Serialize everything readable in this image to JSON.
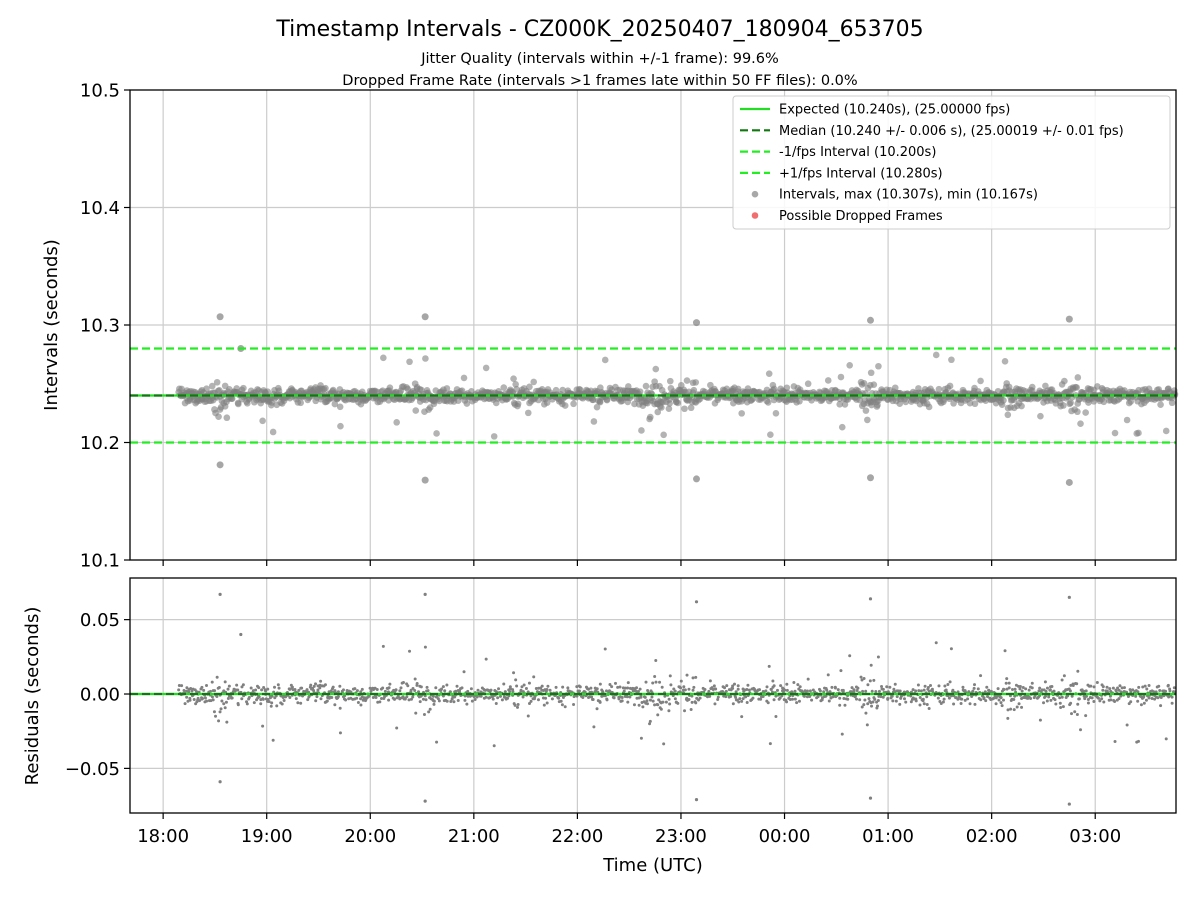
{
  "chart_data": {
    "type": "scatter",
    "title": "Timestamp Intervals - CZ000K_20250407_180904_653705",
    "subtitle_1": "Jitter Quality (intervals within +/-1 frame): 99.6%",
    "subtitle_2": "Dropped Frame Rate (intervals >1 frames late within 50 FF files): 0.0%",
    "xlabel": "Time (UTC)",
    "x_tick_labels": [
      "18:00",
      "19:00",
      "20:00",
      "21:00",
      "22:00",
      "23:00",
      "00:00",
      "01:00",
      "02:00",
      "03:00"
    ],
    "x_range_hours": [
      17.68,
      27.78
    ],
    "grid": true,
    "top_panel": {
      "ylabel": "Intervals (seconds)",
      "ylim": [
        10.1,
        10.5
      ],
      "y_tick_labels": [
        "10.1",
        "10.2",
        "10.3",
        "10.4",
        "10.5"
      ],
      "expected": 10.24,
      "median": 10.24,
      "lower_bound": 10.2,
      "upper_bound": 10.28,
      "max_interval": 10.307,
      "min_interval": 10.167,
      "data_start_hour": 18.15,
      "data_end_hour": 27.78
    },
    "bottom_panel": {
      "ylabel": "Residuals (seconds)",
      "ylim": [
        -0.08,
        0.078
      ],
      "y_tick_labels": [
        "−0.05",
        "0.00",
        "0.05"
      ],
      "zero_line": 0.0
    },
    "outliers": [
      {
        "x": 18.55,
        "y": 10.307
      },
      {
        "x": 18.55,
        "y": 10.181
      },
      {
        "x": 18.75,
        "y": 10.28
      },
      {
        "x": 20.53,
        "y": 10.307
      },
      {
        "x": 20.53,
        "y": 10.168
      },
      {
        "x": 23.15,
        "y": 10.302
      },
      {
        "x": 23.15,
        "y": 10.169
      },
      {
        "x": 24.83,
        "y": 10.304
      },
      {
        "x": 24.83,
        "y": 10.17
      },
      {
        "x": 26.75,
        "y": 10.305
      },
      {
        "x": 26.75,
        "y": 10.166
      }
    ],
    "legend": {
      "placement": "upper right",
      "items": [
        {
          "label": "Expected (10.240s), (25.00000 fps)",
          "style": "solid-line",
          "color": "#22dd22"
        },
        {
          "label": "Median (10.240 +/- 0.006 s), (25.00019 +/- 0.01 fps)",
          "style": "dashed-line",
          "color": "#117711"
        },
        {
          "label": "-1/fps Interval (10.200s)",
          "style": "dashed-line",
          "color": "#22ee22"
        },
        {
          "label": "+1/fps Interval (10.280s)",
          "style": "dashed-line",
          "color": "#22ee22"
        },
        {
          "label": "Intervals, max (10.307s), min (10.167s)",
          "style": "marker",
          "color": "#999999"
        },
        {
          "label": "Possible Dropped Frames",
          "style": "marker",
          "color": "#ee5555"
        }
      ]
    },
    "colors": {
      "expected": "#22dd22",
      "median": "#117711",
      "bounds": "#22ee22",
      "points": "#808080",
      "dropped": "#ee5555",
      "grid": "#cccccc"
    }
  }
}
